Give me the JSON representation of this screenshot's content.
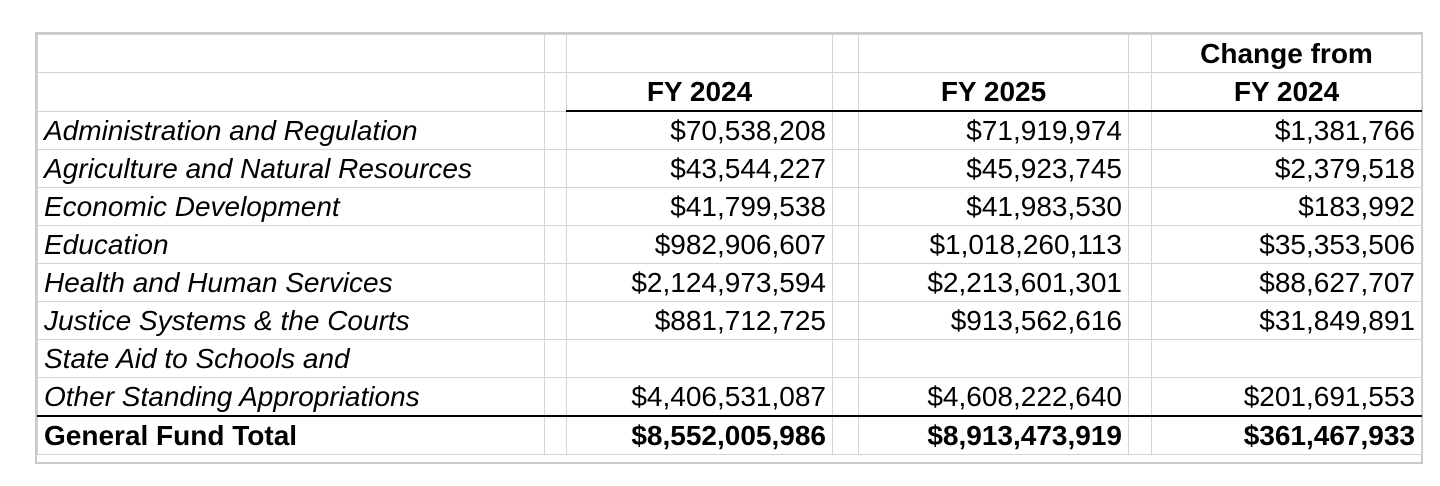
{
  "table": {
    "headers": {
      "fy2024": "FY 2024",
      "fy2025": "FY 2025",
      "change_line1": "Change from",
      "change_line2": "FY 2024"
    },
    "rows": [
      {
        "label": "Administration and Regulation",
        "fy2024": "$70,538,208",
        "fy2025": "$71,919,974",
        "change": "$1,381,766"
      },
      {
        "label": "Agriculture and Natural Resources",
        "fy2024": "$43,544,227",
        "fy2025": "$45,923,745",
        "change": "$2,379,518"
      },
      {
        "label": "Economic Development",
        "fy2024": "$41,799,538",
        "fy2025": "$41,983,530",
        "change": "$183,992"
      },
      {
        "label": "Education",
        "fy2024": "$982,906,607",
        "fy2025": "$1,018,260,113",
        "change": "$35,353,506"
      },
      {
        "label": "Health and Human Services",
        "fy2024": "$2,124,973,594",
        "fy2025": "$2,213,601,301",
        "change": "$88,627,707"
      },
      {
        "label": "Justice Systems & the Courts",
        "fy2024": "$881,712,725",
        "fy2025": "$913,562,616",
        "change": "$31,849,891"
      },
      {
        "label": "State Aid to Schools and",
        "fy2024": "",
        "fy2025": "",
        "change": ""
      },
      {
        "label": "Other Standing Appropriations",
        "fy2024": "$4,406,531,087",
        "fy2025": "$4,608,222,640",
        "change": "$201,691,553"
      }
    ],
    "total": {
      "label": "General Fund Total",
      "fy2024": "$8,552,005,986",
      "fy2025": "$8,913,473,919",
      "change": "$361,467,933"
    }
  }
}
